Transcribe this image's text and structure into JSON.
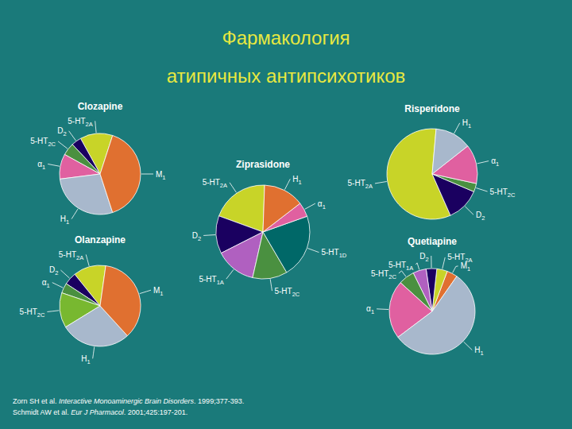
{
  "title": "Фармакология",
  "subtitle": "атипичных антипсихотиков",
  "annotations": [
    [
      "Zorn SH et al. ",
      "Interactive Monoaminergic Brain Disorders",
      ". 1999;377-393."
    ],
    [
      "Schmidt AW et al. ",
      "Eur J Pharmacol",
      ". 2001;425:197-201."
    ]
  ],
  "chart_data": [
    {
      "type": "pie",
      "title": "Clozapine",
      "categories": [
        "5-HT2A",
        "D2",
        "5-HT2C",
        "α1",
        "H1",
        "M1"
      ],
      "values": [
        13,
        4,
        5,
        10,
        28,
        40
      ],
      "colors": [
        "#c8d428",
        "#1a0060",
        "#4a9040",
        "#e060a0",
        "#a8b8cc",
        "#e07030"
      ]
    },
    {
      "type": "pie",
      "title": "Risperidone",
      "categories": [
        "5-HT2A",
        "D2",
        "5-HT2C",
        "α1",
        "H1"
      ],
      "values": [
        58,
        12,
        3,
        14,
        13
      ],
      "colors": [
        "#c8d428",
        "#1a0060",
        "#4a9040",
        "#e060a0",
        "#a8b8cc"
      ]
    },
    {
      "type": "pie",
      "title": "Ziprasidone",
      "categories": [
        "5-HT2A",
        "D2",
        "5-HT1A",
        "5-HT2C",
        "5-HT1D",
        "α1",
        "H1"
      ],
      "values": [
        20,
        13,
        14,
        12,
        22,
        5,
        14
      ],
      "colors": [
        "#c8d428",
        "#1a0060",
        "#b060c0",
        "#4a9040",
        "#006868",
        "#e060a0",
        "#e07030"
      ]
    },
    {
      "type": "pie",
      "title": "Olanzapine",
      "categories": [
        "5-HT2A",
        "D2",
        "α1",
        "5-HT2C",
        "H1",
        "M1"
      ],
      "values": [
        13,
        5,
        4,
        14,
        28,
        36
      ],
      "colors": [
        "#c8d428",
        "#1a0060",
        "#4a9040",
        "#78b830",
        "#a8b8cc",
        "#e07030"
      ]
    },
    {
      "type": "pie",
      "title": "Quetiapine",
      "categories": [
        "M1",
        "5-HT2A",
        "D2",
        "5-HT1A",
        "5-HT2C",
        "α1",
        "H1"
      ],
      "values": [
        4,
        4,
        4,
        5,
        6,
        22,
        55
      ],
      "colors": [
        "#e07030",
        "#c8d428",
        "#1a0060",
        "#b060c0",
        "#4a9040",
        "#e060a0",
        "#a8b8cc"
      ]
    }
  ]
}
